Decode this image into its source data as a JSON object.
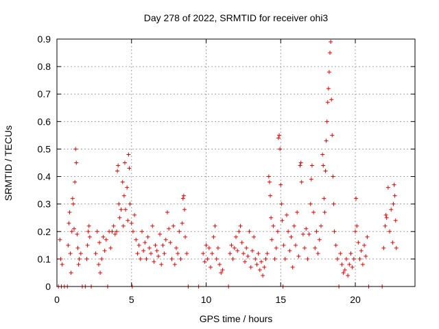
{
  "chart_data": {
    "type": "scatter",
    "title": "Day 278 of 2022, SRMTID for receiver ohi3",
    "xlabel": "GPS time / hours",
    "ylabel": "SRMTID / TECUs",
    "xlim": [
      0,
      24
    ],
    "ylim": [
      0,
      0.9
    ],
    "xticks": [
      0,
      5,
      10,
      15,
      20
    ],
    "xtick_labels": [
      "0",
      "5",
      "10",
      "15",
      "20"
    ],
    "yticks": [
      0,
      0.1,
      0.2,
      0.3,
      0.4,
      0.5,
      0.6,
      0.7,
      0.8,
      0.9
    ],
    "ytick_labels": [
      "0",
      "0.1",
      "0.2",
      "0.3",
      "0.4",
      "0.5",
      "0.6",
      "0.7",
      "0.8",
      "0.9"
    ],
    "grid": true,
    "marker": "+",
    "series": [
      {
        "name": "SRMTID",
        "color": "#ee0000",
        "points": [
          [
            0.1,
            0.0
          ],
          [
            0.2,
            0.17
          ],
          [
            0.25,
            0.1
          ],
          [
            0.3,
            0.0
          ],
          [
            0.35,
            0.08
          ],
          [
            0.5,
            0.0
          ],
          [
            0.7,
            0.0
          ],
          [
            0.75,
            0.15
          ],
          [
            0.8,
            0.23
          ],
          [
            0.85,
            0.27
          ],
          [
            0.9,
            0.12
          ],
          [
            0.95,
            0.05
          ],
          [
            1.0,
            0.2
          ],
          [
            1.05,
            0.32
          ],
          [
            1.1,
            0.3
          ],
          [
            1.15,
            0.21
          ],
          [
            1.2,
            0.38
          ],
          [
            1.25,
            0.5
          ],
          [
            1.3,
            0.45
          ],
          [
            1.35,
            0.19
          ],
          [
            1.4,
            0.14
          ],
          [
            1.45,
            0.08
          ],
          [
            1.5,
            0.1
          ],
          [
            1.6,
            0.12
          ],
          [
            1.7,
            0.0
          ],
          [
            1.9,
            0.0
          ],
          [
            2.0,
            0.1
          ],
          [
            2.05,
            0.15
          ],
          [
            2.1,
            0.2
          ],
          [
            2.15,
            0.22
          ],
          [
            2.2,
            0.18
          ],
          [
            2.3,
            0.0
          ],
          [
            2.6,
            0.12
          ],
          [
            2.7,
            0.2
          ],
          [
            2.8,
            0.08
          ],
          [
            2.85,
            0.16
          ],
          [
            2.9,
            0.05
          ],
          [
            3.0,
            0.1
          ],
          [
            3.1,
            0.18
          ],
          [
            3.2,
            0.13
          ],
          [
            3.3,
            0.17
          ],
          [
            3.4,
            0.0
          ],
          [
            3.5,
            0.2
          ],
          [
            3.6,
            0.14
          ],
          [
            3.7,
            0.2
          ],
          [
            3.8,
            0.22
          ],
          [
            3.9,
            0.19
          ],
          [
            4.0,
            0.2
          ],
          [
            4.05,
            0.42
          ],
          [
            4.1,
            0.44
          ],
          [
            4.15,
            0.3
          ],
          [
            4.2,
            0.25
          ],
          [
            4.3,
            0.28
          ],
          [
            4.4,
            0.38
          ],
          [
            4.45,
            0.22
          ],
          [
            4.5,
            0.33
          ],
          [
            4.55,
            0.45
          ],
          [
            4.6,
            0.28
          ],
          [
            4.7,
            0.36
          ],
          [
            4.75,
            0.24
          ],
          [
            4.8,
            0.48
          ],
          [
            4.85,
            0.43
          ],
          [
            4.9,
            0.3
          ],
          [
            5.0,
            0.23
          ],
          [
            5.05,
            0.0
          ],
          [
            5.1,
            0.2
          ],
          [
            5.2,
            0.26
          ],
          [
            5.3,
            0.17
          ],
          [
            5.4,
            0.12
          ],
          [
            5.5,
            0.15
          ],
          [
            5.6,
            0.1
          ],
          [
            5.7,
            0.2
          ],
          [
            5.8,
            0.13
          ],
          [
            5.9,
            0.16
          ],
          [
            6.0,
            0.1
          ],
          [
            6.1,
            0.18
          ],
          [
            6.2,
            0.14
          ],
          [
            6.3,
            0.12
          ],
          [
            6.4,
            0.22
          ],
          [
            6.5,
            0.09
          ],
          [
            6.6,
            0.15
          ],
          [
            6.7,
            0.13
          ],
          [
            6.8,
            0.11
          ],
          [
            6.9,
            0.19
          ],
          [
            7.0,
            0.08
          ],
          [
            7.1,
            0.15
          ],
          [
            7.2,
            0.12
          ],
          [
            7.3,
            0.17
          ],
          [
            7.4,
            0.27
          ],
          [
            7.5,
            0.21
          ],
          [
            7.6,
            0.16
          ],
          [
            7.7,
            0.1
          ],
          [
            7.8,
            0.22
          ],
          [
            7.9,
            0.08
          ],
          [
            8.0,
            0.14
          ],
          [
            8.1,
            0.12
          ],
          [
            8.2,
            0.2
          ],
          [
            8.3,
            0.1
          ],
          [
            8.4,
            0.23
          ],
          [
            8.45,
            0.32
          ],
          [
            8.5,
            0.33
          ],
          [
            8.55,
            0.28
          ],
          [
            8.6,
            0.18
          ],
          [
            8.7,
            0.12
          ],
          [
            8.8,
            0.0
          ],
          [
            9.5,
            0.0
          ],
          [
            9.8,
            0.12
          ],
          [
            9.9,
            0.09
          ],
          [
            10.0,
            0.15
          ],
          [
            10.1,
            0.1
          ],
          [
            10.2,
            0.14
          ],
          [
            10.3,
            0.07
          ],
          [
            10.4,
            0.12
          ],
          [
            10.5,
            0.18
          ],
          [
            10.6,
            0.22
          ],
          [
            10.7,
            0.1
          ],
          [
            10.8,
            0.14
          ],
          [
            10.9,
            0.08
          ],
          [
            11.0,
            0.05
          ],
          [
            11.1,
            0.06
          ],
          [
            11.5,
            0.0
          ],
          [
            11.6,
            0.12
          ],
          [
            11.7,
            0.15
          ],
          [
            11.8,
            0.1
          ],
          [
            11.9,
            0.14
          ],
          [
            12.0,
            0.18
          ],
          [
            12.1,
            0.13
          ],
          [
            12.2,
            0.2
          ],
          [
            12.3,
            0.22
          ],
          [
            12.4,
            0.16
          ],
          [
            12.5,
            0.12
          ],
          [
            12.6,
            0.09
          ],
          [
            12.7,
            0.14
          ],
          [
            12.8,
            0.11
          ],
          [
            12.9,
            0.2
          ],
          [
            13.0,
            0.07
          ],
          [
            13.1,
            0.13
          ],
          [
            13.2,
            0.18
          ],
          [
            13.3,
            0.1
          ],
          [
            13.4,
            0.08
          ],
          [
            13.5,
            0.12
          ],
          [
            13.6,
            0.06
          ],
          [
            13.7,
            0.09
          ],
          [
            13.8,
            0.04
          ],
          [
            13.9,
            0.07
          ],
          [
            14.0,
            0.1
          ],
          [
            14.1,
            0.12
          ],
          [
            14.2,
            0.4
          ],
          [
            14.25,
            0.38
          ],
          [
            14.3,
            0.33
          ],
          [
            14.35,
            0.25
          ],
          [
            14.4,
            0.17
          ],
          [
            14.5,
            0.22
          ],
          [
            14.6,
            0.1
          ],
          [
            14.7,
            0.14
          ],
          [
            14.8,
            0.2
          ],
          [
            14.85,
            0.54
          ],
          [
            14.9,
            0.55
          ],
          [
            14.95,
            0.5
          ],
          [
            15.0,
            0.37
          ],
          [
            15.05,
            0.3
          ],
          [
            15.1,
            0.24
          ],
          [
            15.15,
            0.0
          ],
          [
            15.2,
            0.15
          ],
          [
            15.3,
            0.1
          ],
          [
            15.4,
            0.26
          ],
          [
            15.5,
            0.2
          ],
          [
            15.6,
            0.13
          ],
          [
            15.7,
            0.18
          ],
          [
            15.8,
            0.07
          ],
          [
            15.9,
            0.22
          ],
          [
            16.0,
            0.15
          ],
          [
            16.1,
            0.27
          ],
          [
            16.2,
            0.11
          ],
          [
            16.3,
            0.44
          ],
          [
            16.35,
            0.45
          ],
          [
            16.4,
            0.38
          ],
          [
            16.5,
            0.19
          ],
          [
            16.6,
            0.14
          ],
          [
            16.7,
            0.21
          ],
          [
            16.8,
            0.1
          ],
          [
            16.9,
            0.19
          ],
          [
            17.0,
            0.3
          ],
          [
            17.05,
            0.39
          ],
          [
            17.1,
            0.44
          ],
          [
            17.2,
            0.27
          ],
          [
            17.3,
            0.14
          ],
          [
            17.4,
            0.2
          ],
          [
            17.5,
            0.12
          ],
          [
            17.6,
            0.17
          ],
          [
            17.7,
            0.22
          ],
          [
            17.8,
            0.48
          ],
          [
            17.85,
            0.44
          ],
          [
            17.9,
            0.32
          ],
          [
            17.95,
            0.27
          ],
          [
            18.0,
            0.42
          ],
          [
            18.05,
            0.53
          ],
          [
            18.1,
            0.6
          ],
          [
            18.15,
            0.67
          ],
          [
            18.2,
            0.72
          ],
          [
            18.25,
            0.78
          ],
          [
            18.3,
            0.85
          ],
          [
            18.35,
            0.89
          ],
          [
            18.4,
            0.68
          ],
          [
            18.45,
            0.55
          ],
          [
            18.5,
            0.4
          ],
          [
            18.55,
            0.3
          ],
          [
            18.6,
            0.2
          ],
          [
            18.7,
            0.15
          ],
          [
            18.8,
            0.1
          ],
          [
            18.9,
            0.0
          ],
          [
            19.0,
            0.12
          ],
          [
            19.1,
            0.08
          ],
          [
            19.2,
            0.05
          ],
          [
            19.3,
            0.06
          ],
          [
            19.4,
            0.1
          ],
          [
            19.5,
            0.04
          ],
          [
            19.6,
            0.08
          ],
          [
            19.7,
            0.12
          ],
          [
            19.8,
            0.07
          ],
          [
            19.9,
            0.1
          ],
          [
            20.0,
            0.2
          ],
          [
            20.05,
            0.32
          ],
          [
            20.1,
            0.22
          ],
          [
            20.2,
            0.16
          ],
          [
            20.3,
            0.1
          ],
          [
            20.4,
            0.13
          ],
          [
            20.5,
            0.08
          ],
          [
            20.6,
            0.15
          ],
          [
            20.7,
            0.11
          ],
          [
            20.8,
            0.18
          ],
          [
            20.9,
            0.0
          ],
          [
            21.8,
            0.0
          ],
          [
            21.9,
            0.14
          ],
          [
            22.0,
            0.22
          ],
          [
            22.05,
            0.26
          ],
          [
            22.1,
            0.25
          ],
          [
            22.2,
            0.36
          ],
          [
            22.3,
            0.2
          ],
          [
            22.4,
            0.28
          ],
          [
            22.5,
            0.16
          ],
          [
            22.55,
            0.3
          ],
          [
            22.6,
            0.37
          ],
          [
            22.65,
            0.33
          ],
          [
            22.7,
            0.24
          ],
          [
            22.75,
            0.14
          ]
        ]
      }
    ]
  }
}
